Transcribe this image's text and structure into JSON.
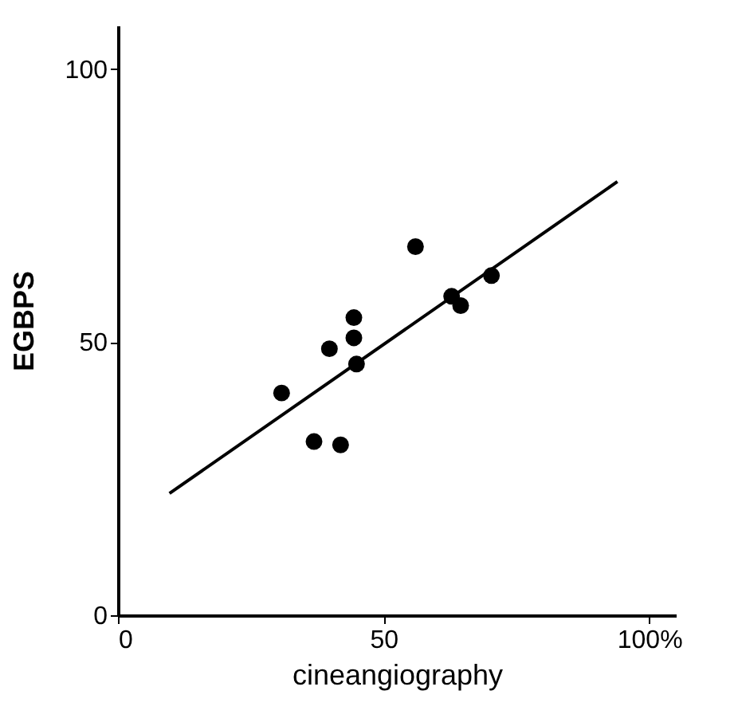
{
  "chart_data": {
    "type": "scatter",
    "xlabel": "cineangiography",
    "ylabel": "EGBPS",
    "xlim": [
      0,
      105
    ],
    "ylim": [
      0,
      108
    ],
    "xticks": [
      0,
      50,
      {
        "value": 100,
        "label": "100%"
      }
    ],
    "yticks": [
      0,
      50,
      100
    ],
    "grid": false,
    "marker": "circle",
    "series": [
      {
        "color": "#000000",
        "x": [
          30.8,
          36.9,
          41.9,
          39.8,
          44.4,
          44.4,
          44.9,
          56.0,
          62.8,
          64.5,
          70.3
        ],
        "values": [
          40.7,
          31.8,
          31.2,
          48.8,
          54.5,
          50.8,
          46.0,
          67.5,
          58.4,
          56.7,
          62.2
        ]
      },
      {
        "type": "line",
        "marker": "none",
        "color": "#000000",
        "x": [
          9.7,
          94
        ],
        "values": [
          22.3,
          79.4
        ]
      }
    ]
  }
}
